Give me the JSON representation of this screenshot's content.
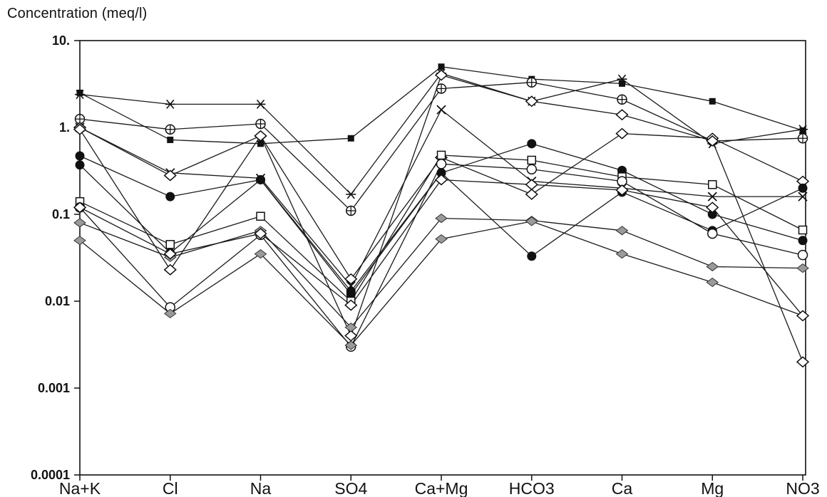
{
  "chart_data": {
    "type": "line",
    "title": "",
    "xlabel": "",
    "ylabel": "Concentration (meq/l)",
    "yscale": "log",
    "ylim": [
      0.0001,
      10
    ],
    "ytick_values": [
      10,
      1,
      0.1,
      0.01,
      0.001,
      0.0001
    ],
    "ytick_labels": [
      "10.",
      "1.",
      "0.1",
      "0.01",
      "0.001",
      "0.0001"
    ],
    "grid": false,
    "legend": "none",
    "categories": [
      "Na+K",
      "Cl",
      "Na",
      "SO4",
      "Ca+Mg",
      "HCO3",
      "Ca",
      "Mg",
      "NO3"
    ],
    "series": [
      {
        "marker": "star",
        "values": [
          2.4,
          1.85,
          1.85,
          0.17,
          4.2,
          2.0,
          3.6,
          0.65,
          0.95
        ]
      },
      {
        "marker": "square-filled",
        "values": [
          2.5,
          0.72,
          0.65,
          0.75,
          5.0,
          3.6,
          3.2,
          2.0,
          0.92
        ]
      },
      {
        "marker": "crossed-circle",
        "values": [
          1.25,
          0.95,
          1.1,
          0.11,
          2.8,
          3.3,
          2.1,
          0.7,
          0.75
        ]
      },
      {
        "marker": "x",
        "values": [
          1.0,
          0.3,
          0.26,
          0.015,
          1.6,
          0.24,
          0.2,
          0.16,
          0.16
        ]
      },
      {
        "marker": "diamond-open",
        "values": [
          1.0,
          0.28,
          0.8,
          0.018,
          0.45,
          0.17,
          0.85,
          0.75,
          0.24
        ]
      },
      {
        "marker": "diamond-open",
        "values": [
          0.95,
          0.023,
          0.8,
          0.004,
          4.0,
          2.0,
          1.4,
          0.7,
          0.002
        ]
      },
      {
        "marker": "circle-filled",
        "values": [
          0.47,
          0.16,
          0.25,
          0.012,
          0.3,
          0.65,
          0.32,
          0.1,
          0.05
        ]
      },
      {
        "marker": "circle-filled",
        "values": [
          0.37,
          0.036,
          0.25,
          0.013,
          0.3,
          0.033,
          0.18,
          0.065,
          0.2
        ]
      },
      {
        "marker": "square-open",
        "values": [
          0.14,
          0.045,
          0.095,
          0.01,
          0.48,
          0.42,
          0.27,
          0.22,
          0.066
        ]
      },
      {
        "marker": "circle-open",
        "values": [
          0.12,
          0.0085,
          0.058,
          0.003,
          0.38,
          0.33,
          0.24,
          0.06,
          0.034
        ]
      },
      {
        "marker": "diamond-gray",
        "values": [
          0.08,
          0.032,
          0.065,
          0.005,
          0.09,
          0.085,
          0.065,
          0.025,
          0.024
        ]
      },
      {
        "marker": "diamond-gray",
        "values": [
          0.05,
          0.0072,
          0.035,
          0.0031,
          0.052,
          0.083,
          0.035,
          0.0165,
          0.0068
        ]
      },
      {
        "marker": "diamond-open",
        "values": [
          0.12,
          0.035,
          0.06,
          0.009,
          0.25,
          0.22,
          0.19,
          0.12,
          0.0068
        ]
      }
    ]
  }
}
